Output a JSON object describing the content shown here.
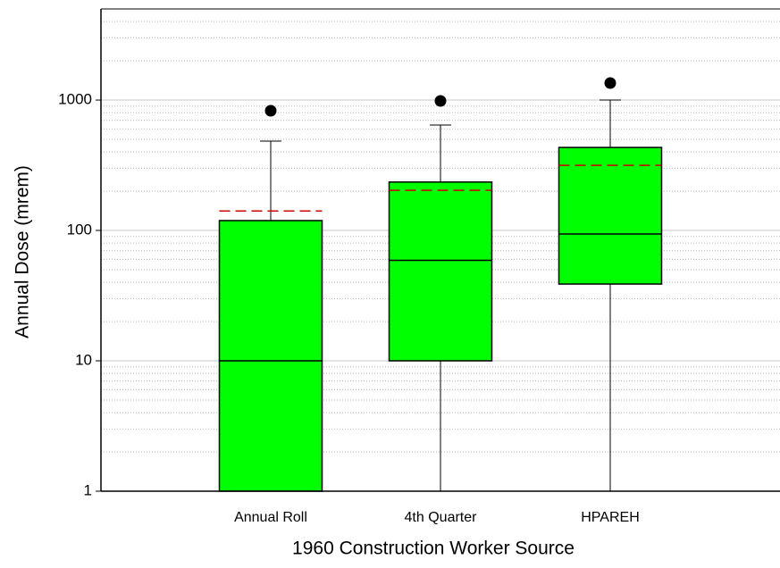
{
  "chart_data": {
    "type": "box",
    "y_label": "Annual Dose (mrem)",
    "x_label": "1960 Construction Worker Source",
    "categories": [
      "Annual Roll",
      "4th Quarter",
      "HPAREH"
    ],
    "boxes": [
      {
        "min": 1,
        "q1": 1,
        "median": 10,
        "q3": 119,
        "max": 484,
        "mean": 141,
        "outliers": [
          828
        ]
      },
      {
        "min": 1,
        "q1": 10,
        "median": 59,
        "q3": 235,
        "max": 643,
        "mean": 203,
        "outliers": [
          985
        ]
      },
      {
        "min": 1,
        "q1": 38.8,
        "median": 94,
        "q3": 433,
        "max": 1000,
        "mean": 316,
        "outliers": [
          1350
        ]
      }
    ],
    "color": "#00ff00",
    "mean_color": "#cc0000",
    "log_y": true,
    "grid": true,
    "ylim": [
      1,
      5000
    ],
    "yticks": [
      1,
      10,
      100,
      1000
    ],
    "minor_yticks": [
      2,
      3,
      4,
      5,
      6,
      7,
      8,
      9,
      20,
      30,
      40,
      50,
      60,
      70,
      80,
      90,
      200,
      300,
      400,
      500,
      600,
      700,
      800,
      900,
      2000,
      3000,
      4000,
      5000
    ]
  }
}
